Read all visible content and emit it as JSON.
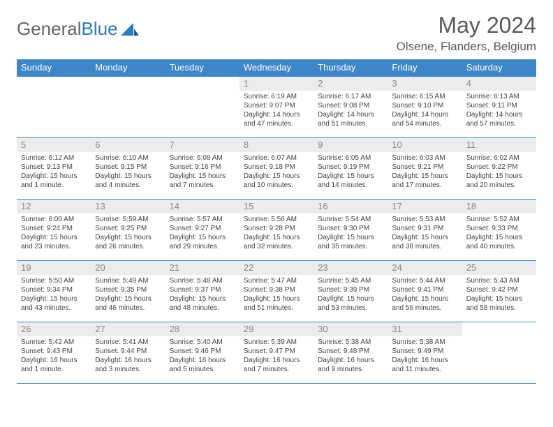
{
  "logo": {
    "text1": "General",
    "text2": "Blue"
  },
  "title": "May 2024",
  "location": "Olsene, Flanders, Belgium",
  "colors": {
    "header_bg": "#3d87c9",
    "header_text": "#ffffff",
    "daynum_bg": "#ececec",
    "daynum_text": "#888888",
    "border": "#3d87c9",
    "body_text": "#444444",
    "title_text": "#5a5a5a",
    "logo_gray": "#666666",
    "logo_blue": "#2b7bbf"
  },
  "weekdays": [
    "Sunday",
    "Monday",
    "Tuesday",
    "Wednesday",
    "Thursday",
    "Friday",
    "Saturday"
  ],
  "weeks": [
    [
      {
        "day": "",
        "text": ""
      },
      {
        "day": "",
        "text": ""
      },
      {
        "day": "",
        "text": ""
      },
      {
        "day": "1",
        "text": "Sunrise: 6:19 AM\nSunset: 9:07 PM\nDaylight: 14 hours and 47 minutes."
      },
      {
        "day": "2",
        "text": "Sunrise: 6:17 AM\nSunset: 9:08 PM\nDaylight: 14 hours and 51 minutes."
      },
      {
        "day": "3",
        "text": "Sunrise: 6:15 AM\nSunset: 9:10 PM\nDaylight: 14 hours and 54 minutes."
      },
      {
        "day": "4",
        "text": "Sunrise: 6:13 AM\nSunset: 9:11 PM\nDaylight: 14 hours and 57 minutes."
      }
    ],
    [
      {
        "day": "5",
        "text": "Sunrise: 6:12 AM\nSunset: 9:13 PM\nDaylight: 15 hours and 1 minute."
      },
      {
        "day": "6",
        "text": "Sunrise: 6:10 AM\nSunset: 9:15 PM\nDaylight: 15 hours and 4 minutes."
      },
      {
        "day": "7",
        "text": "Sunrise: 6:08 AM\nSunset: 9:16 PM\nDaylight: 15 hours and 7 minutes."
      },
      {
        "day": "8",
        "text": "Sunrise: 6:07 AM\nSunset: 9:18 PM\nDaylight: 15 hours and 10 minutes."
      },
      {
        "day": "9",
        "text": "Sunrise: 6:05 AM\nSunset: 9:19 PM\nDaylight: 15 hours and 14 minutes."
      },
      {
        "day": "10",
        "text": "Sunrise: 6:03 AM\nSunset: 9:21 PM\nDaylight: 15 hours and 17 minutes."
      },
      {
        "day": "11",
        "text": "Sunrise: 6:02 AM\nSunset: 9:22 PM\nDaylight: 15 hours and 20 minutes."
      }
    ],
    [
      {
        "day": "12",
        "text": "Sunrise: 6:00 AM\nSunset: 9:24 PM\nDaylight: 15 hours and 23 minutes."
      },
      {
        "day": "13",
        "text": "Sunrise: 5:59 AM\nSunset: 9:25 PM\nDaylight: 15 hours and 26 minutes."
      },
      {
        "day": "14",
        "text": "Sunrise: 5:57 AM\nSunset: 9:27 PM\nDaylight: 15 hours and 29 minutes."
      },
      {
        "day": "15",
        "text": "Sunrise: 5:56 AM\nSunset: 9:28 PM\nDaylight: 15 hours and 32 minutes."
      },
      {
        "day": "16",
        "text": "Sunrise: 5:54 AM\nSunset: 9:30 PM\nDaylight: 15 hours and 35 minutes."
      },
      {
        "day": "17",
        "text": "Sunrise: 5:53 AM\nSunset: 9:31 PM\nDaylight: 15 hours and 38 minutes."
      },
      {
        "day": "18",
        "text": "Sunrise: 5:52 AM\nSunset: 9:33 PM\nDaylight: 15 hours and 40 minutes."
      }
    ],
    [
      {
        "day": "19",
        "text": "Sunrise: 5:50 AM\nSunset: 9:34 PM\nDaylight: 15 hours and 43 minutes."
      },
      {
        "day": "20",
        "text": "Sunrise: 5:49 AM\nSunset: 9:35 PM\nDaylight: 15 hours and 46 minutes."
      },
      {
        "day": "21",
        "text": "Sunrise: 5:48 AM\nSunset: 9:37 PM\nDaylight: 15 hours and 48 minutes."
      },
      {
        "day": "22",
        "text": "Sunrise: 5:47 AM\nSunset: 9:38 PM\nDaylight: 15 hours and 51 minutes."
      },
      {
        "day": "23",
        "text": "Sunrise: 5:45 AM\nSunset: 9:39 PM\nDaylight: 15 hours and 53 minutes."
      },
      {
        "day": "24",
        "text": "Sunrise: 5:44 AM\nSunset: 9:41 PM\nDaylight: 15 hours and 56 minutes."
      },
      {
        "day": "25",
        "text": "Sunrise: 5:43 AM\nSunset: 9:42 PM\nDaylight: 15 hours and 58 minutes."
      }
    ],
    [
      {
        "day": "26",
        "text": "Sunrise: 5:42 AM\nSunset: 9:43 PM\nDaylight: 16 hours and 1 minute."
      },
      {
        "day": "27",
        "text": "Sunrise: 5:41 AM\nSunset: 9:44 PM\nDaylight: 16 hours and 3 minutes."
      },
      {
        "day": "28",
        "text": "Sunrise: 5:40 AM\nSunset: 9:46 PM\nDaylight: 16 hours and 5 minutes."
      },
      {
        "day": "29",
        "text": "Sunrise: 5:39 AM\nSunset: 9:47 PM\nDaylight: 16 hours and 7 minutes."
      },
      {
        "day": "30",
        "text": "Sunrise: 5:38 AM\nSunset: 9:48 PM\nDaylight: 16 hours and 9 minutes."
      },
      {
        "day": "31",
        "text": "Sunrise: 5:38 AM\nSunset: 9:49 PM\nDaylight: 16 hours and 11 minutes."
      },
      {
        "day": "",
        "text": ""
      }
    ]
  ]
}
